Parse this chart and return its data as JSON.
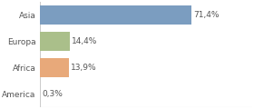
{
  "categories": [
    "Asia",
    "Europa",
    "Africa",
    "America"
  ],
  "values": [
    71.4,
    14.4,
    13.9,
    0.3
  ],
  "labels": [
    "71,4%",
    "14,4%",
    "13,9%",
    "0,3%"
  ],
  "bar_colors": [
    "#7B9DC0",
    "#AABF8A",
    "#E8A97A",
    "#C8C8C8"
  ],
  "background_color": "#ffffff",
  "xlim": [
    0,
    100
  ],
  "bar_height": 0.72,
  "label_fontsize": 6.5,
  "tick_fontsize": 6.5,
  "label_color": "#555555",
  "border_color": "#cccccc"
}
